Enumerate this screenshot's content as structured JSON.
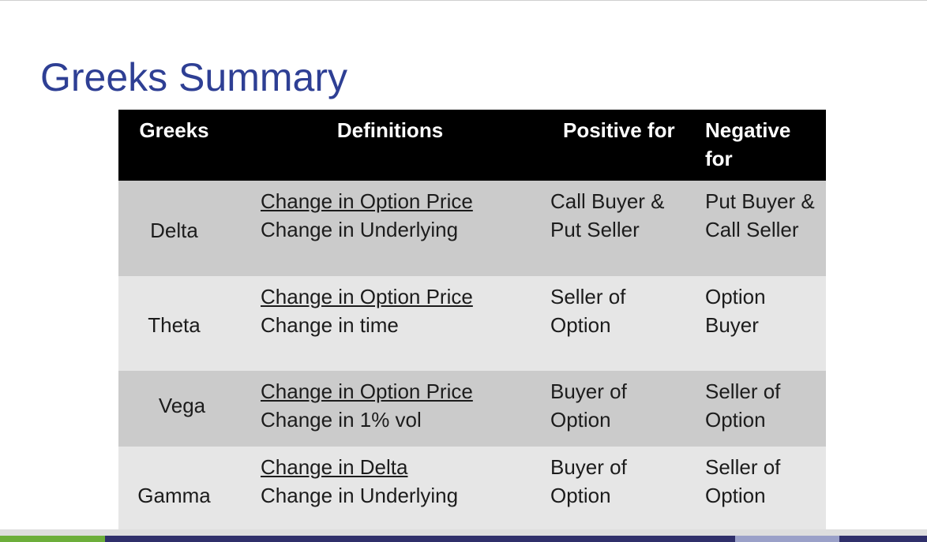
{
  "title": "Greeks Summary",
  "headers": {
    "greeks": "Greeks",
    "definitions": "Definitions",
    "positive_for": "Positive for",
    "negative_for_1": "Negative",
    "negative_for_2": "for"
  },
  "rows": [
    {
      "greek": "Delta",
      "numerator": "Change in Option Price",
      "denominator": "Change in Underlying",
      "positive": [
        "Call Buyer &",
        "Put Seller"
      ],
      "negative": [
        "Put Buyer &",
        "Call Seller"
      ]
    },
    {
      "greek": "Theta",
      "numerator": "Change in Option Price",
      "denominator": "Change in time",
      "positive": [
        "Seller of",
        "Option"
      ],
      "negative": [
        "Option",
        "Buyer"
      ]
    },
    {
      "greek": "Vega",
      "numerator": "Change in Option Price",
      "denominator": "Change in 1% vol",
      "positive": [
        "Buyer of",
        "Option"
      ],
      "negative": [
        "Seller of",
        "Option"
      ]
    },
    {
      "greek": "Gamma",
      "numerator": "Change in Delta",
      "denominator": "Change in Underlying",
      "positive": [
        "Buyer of",
        "Option"
      ],
      "negative": [
        "Seller of",
        "Option"
      ]
    }
  ],
  "colors": {
    "title": "#2e3f94",
    "header_bg": "#000000",
    "row_dark": "#cbcbcb",
    "row_light": "#e6e6e6"
  }
}
